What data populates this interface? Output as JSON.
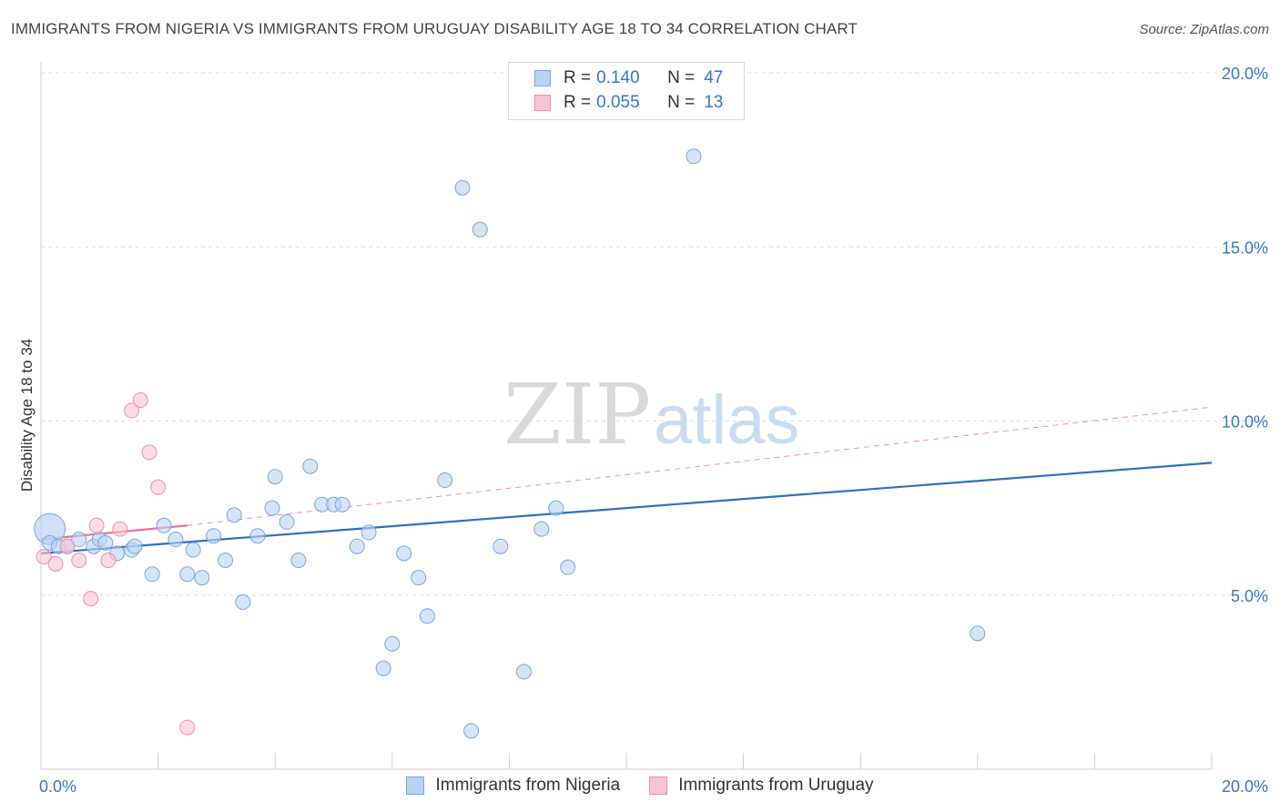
{
  "header": {
    "title": "IMMIGRANTS FROM NIGERIA VS IMMIGRANTS FROM URUGUAY DISABILITY AGE 18 TO 34 CORRELATION CHART",
    "source": "Source: ZipAtlas.com"
  },
  "watermark": {
    "zip": "ZIP",
    "atlas": "atlas"
  },
  "colors": {
    "nigeria_fill": "#b9d3f3",
    "nigeria_stroke": "#7aa6dc",
    "nigeria_line": "#2f6fc4",
    "uruguay_fill": "#f8c4d4",
    "uruguay_stroke": "#ec8fac",
    "uruguay_line": "#e8739a",
    "axis_text": "#3a76c4",
    "grid": "#dddddd"
  },
  "legend": {
    "rows": [
      {
        "r_label": "R =",
        "r_value": "0.140",
        "n_label": "N =",
        "n_value": "47"
      },
      {
        "r_label": "R =",
        "r_value": "0.055",
        "n_label": "N =",
        "n_value": "13"
      }
    ]
  },
  "chart_data": {
    "type": "scatter",
    "title": "IMMIGRANTS FROM NIGERIA VS IMMIGRANTS FROM URUGUAY DISABILITY AGE 18 TO 34 CORRELATION CHART",
    "xlabel": "",
    "ylabel": "Disability Age 18 to 34",
    "xlim": [
      0,
      20
    ],
    "ylim": [
      0,
      20
    ],
    "x_tick_labels": [
      "0.0%",
      "20.0%"
    ],
    "y_ticks": [
      {
        "value": 5,
        "label": "5.0%"
      },
      {
        "value": 10,
        "label": "10.0%"
      },
      {
        "value": 15,
        "label": "15.0%"
      },
      {
        "value": 20,
        "label": "20.0%"
      }
    ],
    "series": [
      {
        "name": "Immigrants from Nigeria",
        "points": [
          [
            0.15,
            6.5
          ],
          [
            0.3,
            6.4
          ],
          [
            0.45,
            6.4
          ],
          [
            0.65,
            6.6
          ],
          [
            0.9,
            6.4
          ],
          [
            1.0,
            6.6
          ],
          [
            1.1,
            6.5
          ],
          [
            1.3,
            6.2
          ],
          [
            1.55,
            6.3
          ],
          [
            1.6,
            6.4
          ],
          [
            1.9,
            5.6
          ],
          [
            2.1,
            7.0
          ],
          [
            2.3,
            6.6
          ],
          [
            2.5,
            5.6
          ],
          [
            2.6,
            6.3
          ],
          [
            2.75,
            5.5
          ],
          [
            2.95,
            6.7
          ],
          [
            3.15,
            6.0
          ],
          [
            3.3,
            7.3
          ],
          [
            3.45,
            4.8
          ],
          [
            3.7,
            6.7
          ],
          [
            3.95,
            7.5
          ],
          [
            4.0,
            8.4
          ],
          [
            4.2,
            7.1
          ],
          [
            4.4,
            6.0
          ],
          [
            4.6,
            8.7
          ],
          [
            4.8,
            7.6
          ],
          [
            5.0,
            7.6
          ],
          [
            5.15,
            7.6
          ],
          [
            5.4,
            6.4
          ],
          [
            5.6,
            6.8
          ],
          [
            5.85,
            2.9
          ],
          [
            6.0,
            3.6
          ],
          [
            6.2,
            6.2
          ],
          [
            6.45,
            5.5
          ],
          [
            6.6,
            4.4
          ],
          [
            6.9,
            8.3
          ],
          [
            7.2,
            16.7
          ],
          [
            7.35,
            1.1
          ],
          [
            7.5,
            15.5
          ],
          [
            7.85,
            6.4
          ],
          [
            8.25,
            2.8
          ],
          [
            8.55,
            6.9
          ],
          [
            8.8,
            7.5
          ],
          [
            9.0,
            5.8
          ],
          [
            11.15,
            17.6
          ],
          [
            16.0,
            3.9
          ]
        ],
        "trend": {
          "x0": 0,
          "y0": 6.2,
          "x1": 20,
          "y1": 8.8
        }
      },
      {
        "name": "Immigrants from Uruguay",
        "points": [
          [
            0.05,
            6.1
          ],
          [
            0.25,
            5.9
          ],
          [
            0.45,
            6.4
          ],
          [
            0.65,
            6.0
          ],
          [
            0.85,
            4.9
          ],
          [
            0.95,
            7.0
          ],
          [
            1.15,
            6.0
          ],
          [
            1.35,
            6.9
          ],
          [
            1.55,
            10.3
          ],
          [
            1.7,
            10.6
          ],
          [
            1.85,
            9.1
          ],
          [
            2.0,
            8.1
          ],
          [
            2.5,
            1.2
          ]
        ],
        "trend_solid": {
          "x0": 0,
          "y0": 6.6,
          "x1": 2.5,
          "y1": 7.0
        },
        "trend_dashed": {
          "x0": 2.5,
          "y0": 7.0,
          "x1": 20,
          "y1": 10.4
        }
      }
    ]
  }
}
